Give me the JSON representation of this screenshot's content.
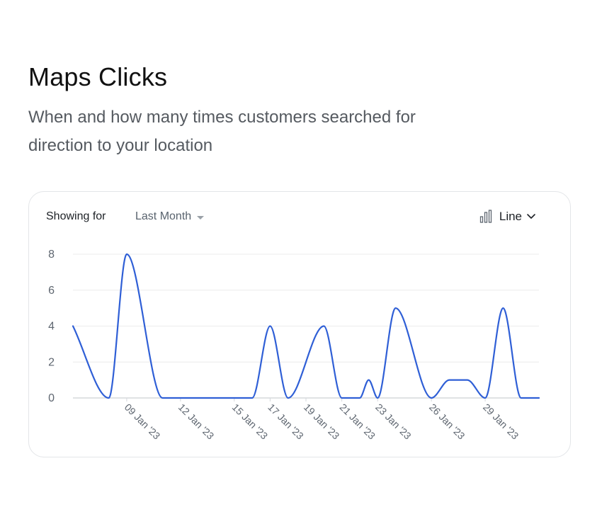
{
  "header": {
    "title": "Maps Clicks",
    "subtitle": "When and how many times customers searched for direction to your location"
  },
  "toolbar": {
    "showing_label": "Showing for",
    "period_value": "Last Month",
    "chart_type_label": "Line",
    "chart_type_icon": "bar-chart-icon",
    "dropdown_icon": "chevron-down-icon"
  },
  "colors": {
    "line": "#2f5fd6",
    "grid": "#ececec",
    "axis": "#d5d8dc"
  },
  "chart_data": {
    "type": "line",
    "title": "",
    "xlabel": "",
    "ylabel": "",
    "ylim": [
      0,
      8
    ],
    "y_ticks": [
      0,
      2,
      4,
      6,
      8
    ],
    "grid": "horizontal",
    "x_tick_labels": [
      "09 Jan '23",
      "12 Jan '23",
      "15 Jan '23",
      "17 Jan '23",
      "19 Jan '23",
      "21 Jan '23",
      "23 Jan '23",
      "26 Jan '23",
      "29 Jan '23"
    ],
    "x_tick_dates": [
      "2023-01-09",
      "2023-01-12",
      "2023-01-15",
      "2023-01-17",
      "2023-01-19",
      "2023-01-21",
      "2023-01-23",
      "2023-01-26",
      "2023-01-29"
    ],
    "points": [
      {
        "x": "2023-01-06",
        "y": 4
      },
      {
        "x": "2023-01-08",
        "y": 0
      },
      {
        "x": "2023-01-09",
        "y": 8
      },
      {
        "x": "2023-01-11",
        "y": 0
      },
      {
        "x": "2023-01-16",
        "y": 0
      },
      {
        "x": "2023-01-17",
        "y": 4
      },
      {
        "x": "2023-01-18",
        "y": 0
      },
      {
        "x": "2023-01-20",
        "y": 4
      },
      {
        "x": "2023-01-21",
        "y": 0
      },
      {
        "x": "2023-01-22",
        "y": 0
      },
      {
        "x": "2023-01-22T12:00",
        "y": 1
      },
      {
        "x": "2023-01-23",
        "y": 0
      },
      {
        "x": "2023-01-24",
        "y": 5
      },
      {
        "x": "2023-01-26",
        "y": 0
      },
      {
        "x": "2023-01-27",
        "y": 1
      },
      {
        "x": "2023-01-28",
        "y": 1
      },
      {
        "x": "2023-01-29",
        "y": 0
      },
      {
        "x": "2023-01-30",
        "y": 5
      },
      {
        "x": "2023-01-31",
        "y": 0
      },
      {
        "x": "2023-02-01",
        "y": 0
      }
    ]
  }
}
